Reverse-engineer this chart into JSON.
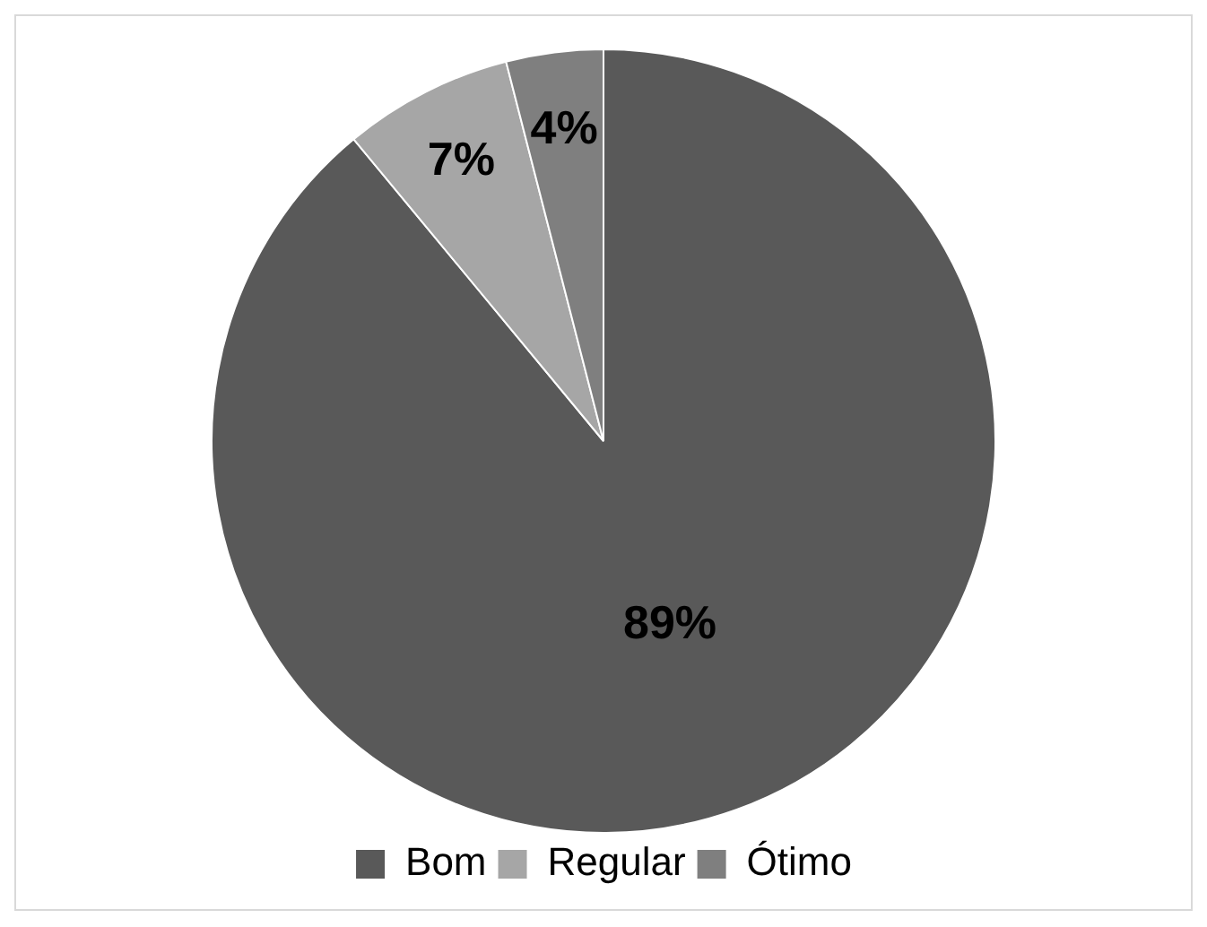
{
  "chart_data": {
    "type": "pie",
    "categories": [
      "Bom",
      "Regular",
      "Ótimo"
    ],
    "values": [
      89,
      7,
      4
    ],
    "colors": [
      "#595959",
      "#a6a6a6",
      "#7f7f7f"
    ],
    "data_labels": true,
    "value_labels": [
      "89%",
      "7%",
      "4%"
    ],
    "legend": "bottom"
  }
}
